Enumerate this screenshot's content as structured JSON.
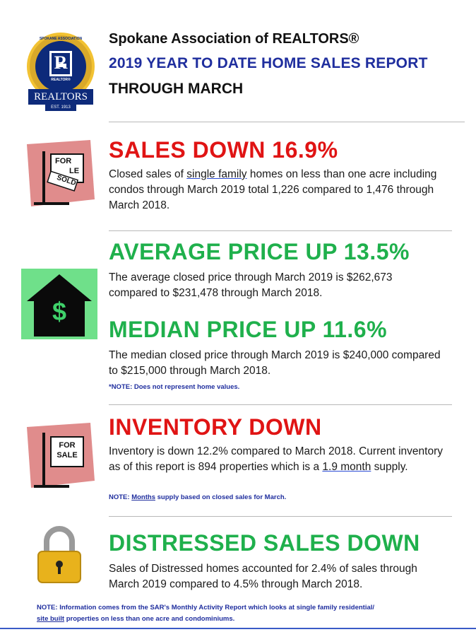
{
  "header": {
    "org_line": "Spokane Association of REALTORS®",
    "report_title": "2019 YEAR TO DATE HOME SALES REPORT",
    "period": "THROUGH MARCH"
  },
  "logo": {
    "ring_text_top": "SPOKANE ASSOCIATION OF",
    "letter": "R",
    "small_text": "REALTOR®",
    "banner": "REALTORS",
    "est": "EST. 1913"
  },
  "sections": {
    "sales": {
      "heading": "SALES DOWN 16.9%",
      "text_pre": "Closed sales of ",
      "text_link": "single family",
      "text_post": " homes on less than one acre including condos through March 2019 total 1,226 compared to 1,476 through March 2018.",
      "icon_sign_top": "FOR",
      "icon_sign_mid": "LE",
      "icon_sign_rider": "SOLD"
    },
    "avg_price": {
      "heading": "AVERAGE PRICE UP 13.5%",
      "text": "The average closed price through March 2019 is $262,673 compared to $231,478 through March 2018.",
      "icon_symbol": "$"
    },
    "median_price": {
      "heading": "MEDIAN PRICE UP 11.6%",
      "text": "The median closed price through March 2019 is $240,000 compared to $215,000 through March 2018.",
      "note": "*NOTE:  Does not represent home values."
    },
    "inventory": {
      "heading": "INVENTORY DOWN",
      "text_pre": "Inventory is down 12.2% compared to March 2018.  Current inventory as of this report is 894 properties which is a ",
      "text_link": "1.9 month",
      "text_post": " supply.",
      "note_pre": "NOTE:  ",
      "note_link": "Months",
      "note_post": " supply based on closed sales for March.",
      "icon_sign_top": "FOR",
      "icon_sign_bottom": "SALE"
    },
    "distressed": {
      "heading": "DISTRESSED SALES DOWN",
      "text": "Sales of Distressed homes accounted for 2.4% of sales through March 2019 compared to 4.5% through March 2018."
    }
  },
  "footer": {
    "line1": "NOTE:  Information comes from the SAR's Monthly Activity Report which looks at single family residential/",
    "line2_link": "site built",
    "line2_rest": " properties on less than one acre and condominiums."
  },
  "colors": {
    "red": "#e01414",
    "green": "#1fb04c",
    "navy": "#1f2e9e",
    "pink": "#e08c8c"
  }
}
